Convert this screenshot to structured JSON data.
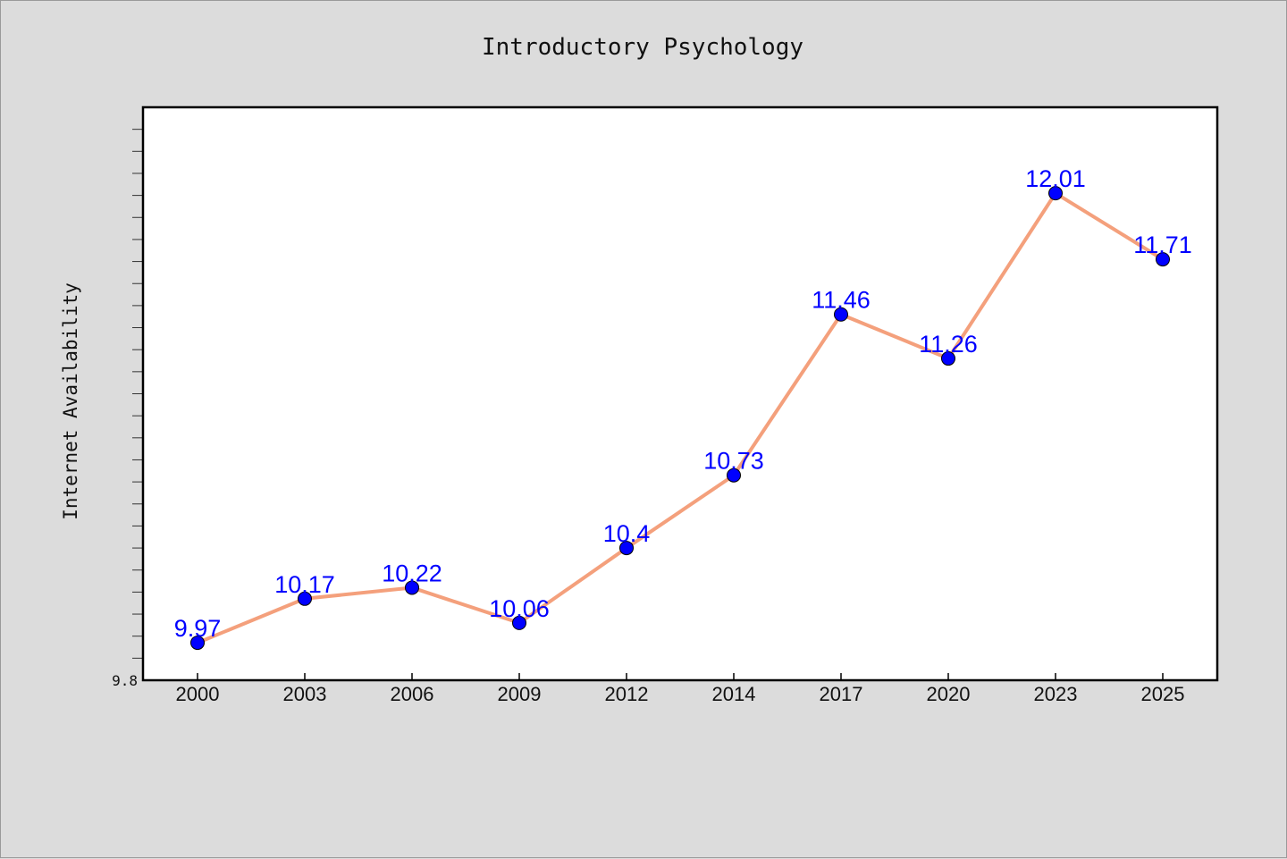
{
  "chart_data": {
    "type": "line",
    "title": "Introductory Psychology",
    "xlabel": "",
    "ylabel": "Internet Availability",
    "categories": [
      "2000",
      "2003",
      "2006",
      "2009",
      "2012",
      "2014",
      "2017",
      "2020",
      "2023",
      "2025"
    ],
    "values": [
      9.97,
      10.17,
      10.22,
      10.06,
      10.4,
      10.73,
      11.46,
      11.26,
      12.01,
      11.71
    ],
    "data_labels": [
      "9.97",
      "10.17",
      "10.22",
      "10.06",
      "10.4",
      "10.73",
      "11.46",
      "11.26",
      "12.01",
      "11.71"
    ],
    "y_tick_label": "9.8",
    "ylim": [
      9.8,
      12.4
    ],
    "y_minor_step": 0.1,
    "grid": false,
    "colors": {
      "line": "#f4a07c",
      "marker": "#0000ff",
      "marker_edge": "#000000",
      "data_label": "#0000ff",
      "plot_background": "#ffffff",
      "figure_background": "#dcdcdc"
    }
  }
}
